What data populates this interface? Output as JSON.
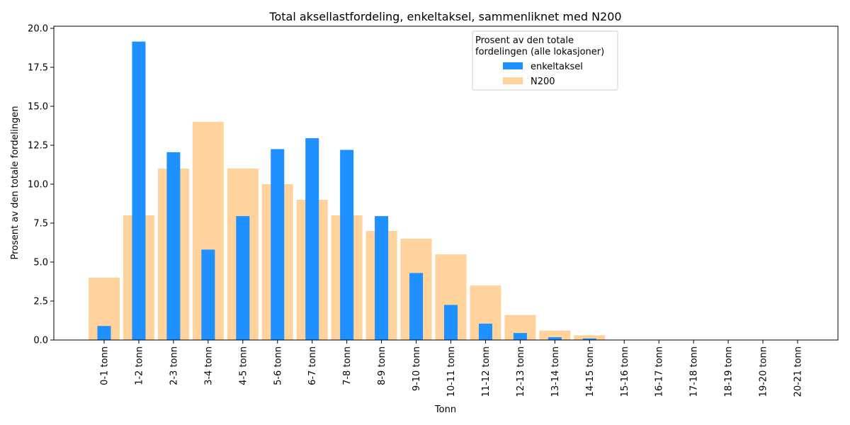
{
  "chart_data": {
    "type": "bar",
    "title": "Total aksellastfordeling, enkeltaksel, sammenliknet med N200",
    "xlabel": "Tonn",
    "ylabel": "Prosent av den totale fordelingen",
    "ylim": [
      0,
      20
    ],
    "yticks": [
      "0.0",
      "2.5",
      "5.0",
      "7.5",
      "10.0",
      "12.5",
      "15.0",
      "17.5",
      "20.0"
    ],
    "grid": false,
    "legend": {
      "title_line1": "Prosent av den totale",
      "title_line2": "fordelingen (alle lokasjoner)",
      "placement": "top-right"
    },
    "categories": [
      "0-1 tonn",
      "1-2 tonn",
      "2-3 tonn",
      "3-4 tonn",
      "4-5 tonn",
      "5-6 tonn",
      "6-7 tonn",
      "7-8 tonn",
      "8-9 tonn",
      "9-10 tonn",
      "10-11 tonn",
      "11-12 tonn",
      "12-13 tonn",
      "13-14 tonn",
      "14-15 tonn",
      "15-16 tonn",
      "16-17 tonn",
      "17-18 tonn",
      "18-19 tonn",
      "19-20 tonn",
      "20-21 tonn"
    ],
    "series": [
      {
        "name": "enkeltaksel",
        "color": "#1e90ff",
        "values": [
          0.9,
          19.15,
          12.05,
          5.8,
          7.95,
          12.25,
          12.95,
          12.2,
          7.95,
          4.3,
          2.25,
          1.05,
          0.45,
          0.18,
          0.1,
          0,
          0,
          0,
          0,
          0,
          0
        ]
      },
      {
        "name": "N200",
        "color": "#ffd39b",
        "values": [
          4.0,
          8.0,
          11.0,
          14.0,
          11.0,
          10.0,
          9.0,
          8.0,
          7.0,
          6.5,
          5.5,
          3.5,
          1.6,
          0.6,
          0.3,
          0,
          0,
          0,
          0,
          0,
          0
        ]
      }
    ]
  }
}
